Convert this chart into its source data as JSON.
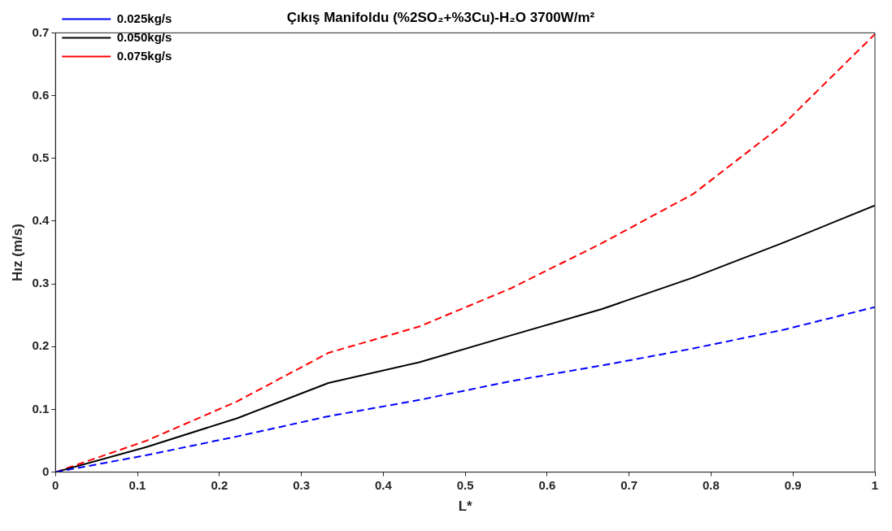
{
  "chart_data": {
    "type": "line",
    "title": "Çıkış Manifoldu (%2SO₂+%3Cu)-H₂O 3700W/m²",
    "xlabel": "L*",
    "ylabel": "Hız (m/s)",
    "x": [
      0,
      0.111,
      0.222,
      0.333,
      0.444,
      0.556,
      0.667,
      0.778,
      0.889,
      1
    ],
    "series": [
      {
        "name": "0.025kg/s",
        "color": "#0000ff",
        "line_style": "dashed",
        "values": [
          0,
          0.027,
          0.057,
          0.089,
          0.115,
          0.145,
          0.17,
          0.197,
          0.227,
          0.263
        ]
      },
      {
        "name": "0.050kg/s",
        "color": "#000000",
        "line_style": "solid",
        "values": [
          0,
          0.04,
          0.086,
          0.142,
          0.175,
          0.218,
          0.26,
          0.31,
          0.366,
          0.425
        ]
      },
      {
        "name": "0.075kg/s",
        "color": "#ff0000",
        "line_style": "dashed",
        "values": [
          0,
          0.05,
          0.113,
          0.19,
          0.232,
          0.293,
          0.365,
          0.443,
          0.555,
          0.698
        ]
      }
    ],
    "xlim": [
      0,
      1
    ],
    "xticks": [
      0,
      0.1,
      0.2,
      0.3,
      0.4,
      0.5,
      0.6,
      0.7,
      0.8,
      0.9,
      1
    ],
    "ylim": [
      0,
      0.7
    ],
    "yticks": [
      0,
      0.1,
      0.2,
      0.3,
      0.4,
      0.5,
      0.6,
      0.7
    ],
    "grid": false,
    "legend": "top left",
    "marker": "none"
  }
}
